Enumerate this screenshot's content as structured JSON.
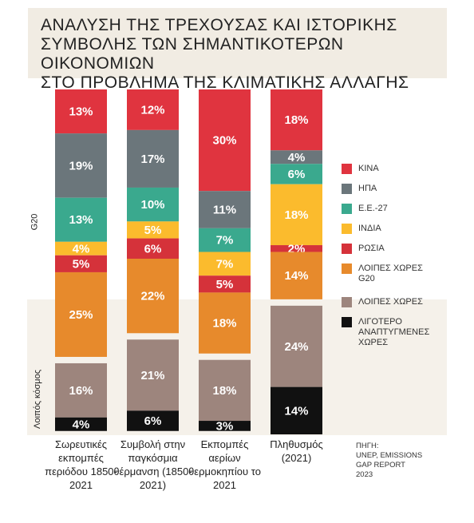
{
  "chart_data": {
    "type": "stacked_bar",
    "title": [
      "ΑΝΑΛΥΣΗ ΤΗΣ ΤΡΕΧΟΥΣΑΣ ΚΑΙ ΙΣΤΟΡΙΚΗΣ",
      "ΣΥΜΒΟΛΗΣ ΤΩΝ ΣΗΜΑΝΤΙΚΟΤΕΡΩΝ ΟΙΚΟΝΟΜΙΩΝ",
      "ΣΤΟ ΠΡΟΒΛΗΜΑ ΤΗΣ ΚΛΙΜΑΤΙΚΗΣ ΑΛΛΑΓΗΣ"
    ],
    "group_labels": [
      "G20",
      "Λοιπός κόσμος"
    ],
    "categories": [
      "Σωρευτικές εκπομπές περιόδου 1850-2021",
      "Συμβολή στην παγκόσμια θέρμανση (1850-2021)",
      "Εκπομπές αερίων θερμοκηπίου το 2021",
      "Πληθυσμός (2021)"
    ],
    "series": [
      {
        "name": "ΚΙΝΑ",
        "color": "#e0343f",
        "group": 0,
        "values": [
          13,
          12,
          30,
          18
        ],
        "value_labels": [
          "13%",
          "12%",
          "30%",
          "18%"
        ]
      },
      {
        "name": "ΗΠΑ",
        "color": "#6b767b",
        "group": 0,
        "values": [
          19,
          17,
          11,
          4
        ],
        "value_labels": [
          "19%",
          "17%",
          "11%",
          "4%"
        ]
      },
      {
        "name": "Ε.Ε.-27",
        "color": "#3aa98e",
        "group": 0,
        "values": [
          13,
          10,
          7,
          6
        ],
        "value_labels": [
          "13%",
          "10%",
          "7%",
          "6%"
        ]
      },
      {
        "name": "ΙΝΔΙΑ",
        "color": "#fbbb2d",
        "group": 0,
        "values": [
          4,
          5,
          7,
          18
        ],
        "value_labels": [
          "4%",
          "5%",
          "7%",
          "18%"
        ]
      },
      {
        "name": "ΡΩΣΙΑ",
        "color": "#d5323a",
        "group": 0,
        "values": [
          5,
          6,
          5,
          2
        ],
        "value_labels": [
          "5%",
          "6%",
          "5%",
          "2%"
        ]
      },
      {
        "name": "ΛΟΙΠΕΣ ΧΩΡΕΣ G20",
        "color": "#e78a2c",
        "group": 0,
        "values": [
          25,
          22,
          18,
          14
        ],
        "value_labels": [
          "25%",
          "22%",
          "18%",
          "14%"
        ]
      },
      {
        "name": "ΛΟΙΠΕΣ ΧΩΡΕΣ",
        "color": "#9d857d",
        "group": 1,
        "values": [
          16,
          21,
          18,
          24
        ],
        "value_labels": [
          "16%",
          "21%",
          "18%",
          "24%"
        ]
      },
      {
        "name": "ΛΙΓΟΤΕΡΟ ΑΝΑΠΤΥΓΜΕΝΕΣ ΧΩΡΕΣ",
        "color": "#111111",
        "group": 1,
        "values": [
          4,
          6,
          3,
          14
        ],
        "value_labels": [
          "4%",
          "6%",
          "3%",
          "14%"
        ]
      }
    ],
    "source": [
      "ΠΗΓΗ:",
      "UNEP, EMISSIONS",
      "GAP REPORT",
      "2023"
    ]
  }
}
